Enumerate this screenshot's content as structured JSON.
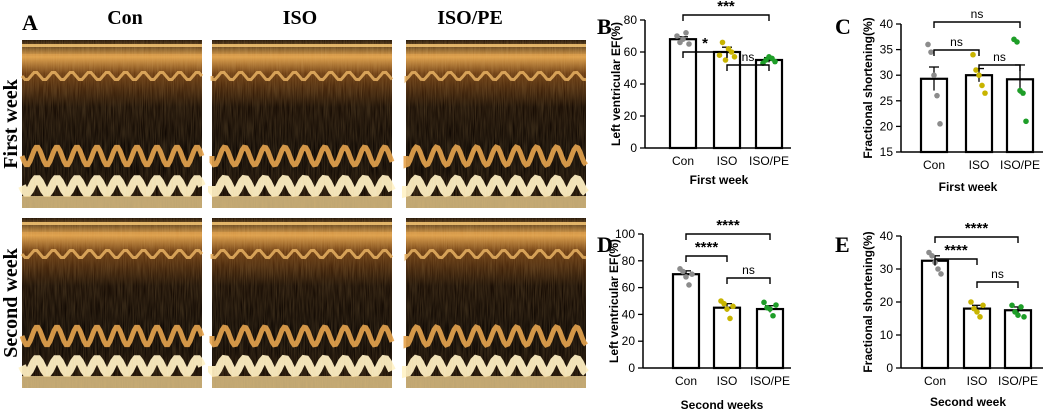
{
  "echo": {
    "panel_label": "A",
    "columns": [
      "Con",
      "ISO",
      "ISO/PE"
    ],
    "rows": [
      "First week",
      "Second week"
    ]
  },
  "chart_data": [
    {
      "panel": "B",
      "type": "bar",
      "title": "",
      "xlabel": "First week",
      "ylabel": "Left ventricular EF(%)",
      "categories": [
        "Con",
        "ISO",
        "ISO/PE"
      ],
      "values": [
        68,
        60,
        55
      ],
      "errors": [
        1.5,
        3,
        1.5
      ],
      "ylim": [
        0,
        80
      ],
      "yticks": [
        0,
        20,
        40,
        60,
        80
      ],
      "points": [
        [
          70,
          66,
          68,
          72,
          65
        ],
        [
          58,
          66,
          55,
          62,
          60,
          57
        ],
        [
          53,
          55,
          57,
          56,
          54
        ]
      ],
      "point_colors": [
        "#8c8c8c",
        "#c8b400",
        "#1e9e28"
      ],
      "comparisons": [
        {
          "from": 0,
          "to": 1,
          "label": "*"
        },
        {
          "from": 1,
          "to": 2,
          "label": "ns"
        },
        {
          "from": 0,
          "to": 2,
          "label": "***"
        }
      ]
    },
    {
      "panel": "C",
      "type": "bar",
      "title": "",
      "xlabel": "First week",
      "ylabel": "Fractional shortening(%)",
      "categories": [
        "Con",
        "ISO",
        "ISO/PE"
      ],
      "values": [
        29.3,
        30,
        29.2
      ],
      "errors": [
        2.3,
        1.3,
        2.8
      ],
      "ylim": [
        15,
        40
      ],
      "yticks": [
        15,
        20,
        25,
        30,
        35,
        40
      ],
      "points": [
        [
          36,
          34.5,
          30,
          26,
          20.5
        ],
        [
          34,
          31,
          30,
          28,
          26.5
        ],
        [
          37,
          36.5,
          27,
          26.5,
          21
        ]
      ],
      "point_colors": [
        "#8c8c8c",
        "#c8b400",
        "#1e9e28"
      ],
      "comparisons": [
        {
          "from": 0,
          "to": 1,
          "label": "ns"
        },
        {
          "from": 1,
          "to": 2,
          "label": "ns"
        },
        {
          "from": 0,
          "to": 2,
          "label": "ns"
        }
      ]
    },
    {
      "panel": "D",
      "type": "bar",
      "title": "",
      "xlabel": "Second weeks",
      "ylabel": "Left ventricular EF(%)",
      "categories": [
        "Con",
        "ISO",
        "ISO/PE"
      ],
      "values": [
        70,
        45,
        44
      ],
      "errors": [
        2.5,
        3,
        2.5
      ],
      "ylim": [
        0,
        100
      ],
      "yticks": [
        0,
        20,
        40,
        60,
        80,
        100
      ],
      "points": [
        [
          74,
          72,
          68,
          62,
          70
        ],
        [
          50,
          48,
          44,
          37,
          46
        ],
        [
          49,
          45,
          44,
          39,
          47
        ]
      ],
      "point_colors": [
        "#8c8c8c",
        "#c8b400",
        "#1e9e28"
      ],
      "comparisons": [
        {
          "from": 0,
          "to": 1,
          "label": "****"
        },
        {
          "from": 1,
          "to": 2,
          "label": "ns"
        },
        {
          "from": 0,
          "to": 2,
          "label": "****"
        }
      ]
    },
    {
      "panel": "E",
      "type": "bar",
      "title": "",
      "xlabel": "Second week",
      "ylabel": "Fractional shortening(%)",
      "categories": [
        "Con",
        "ISO",
        "ISO/PE"
      ],
      "values": [
        32.5,
        18,
        17.5
      ],
      "errors": [
        1.5,
        1,
        1
      ],
      "ylim": [
        0,
        40
      ],
      "yticks": [
        0,
        10,
        20,
        30,
        40
      ],
      "points": [
        [
          35,
          34,
          32,
          30,
          28.5
        ],
        [
          20,
          18,
          17,
          15.5,
          19
        ],
        [
          19,
          17,
          16,
          18.5,
          15.5
        ]
      ],
      "point_colors": [
        "#8c8c8c",
        "#c8b400",
        "#1e9e28"
      ],
      "comparisons": [
        {
          "from": 0,
          "to": 1,
          "label": "****"
        },
        {
          "from": 1,
          "to": 2,
          "label": "ns"
        },
        {
          "from": 0,
          "to": 2,
          "label": "****"
        }
      ]
    }
  ]
}
